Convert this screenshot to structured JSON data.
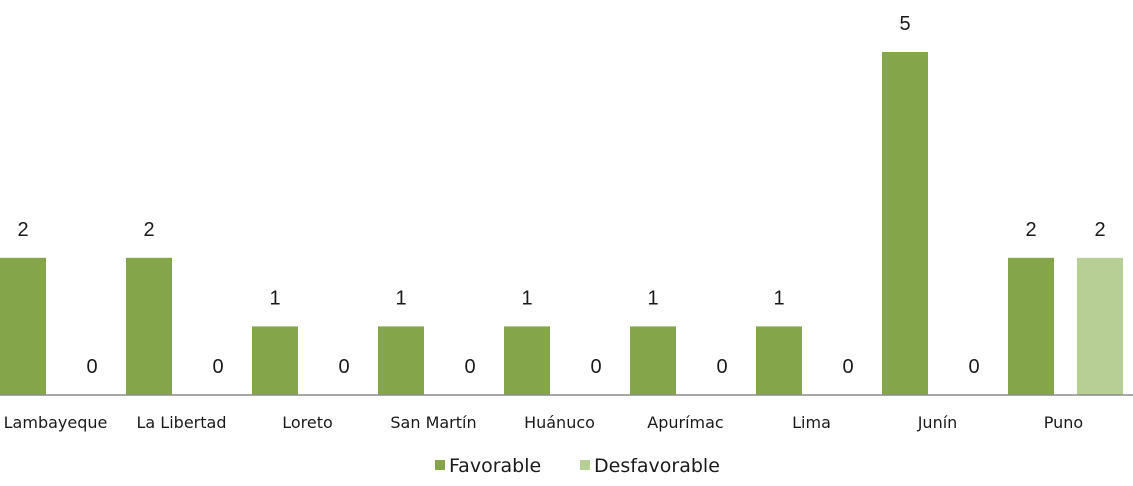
{
  "chart_data": {
    "type": "bar",
    "title": "",
    "xlabel": "",
    "ylabel": "",
    "ylim": [
      0,
      5
    ],
    "grid": false,
    "legend_position": "bottom-center",
    "categories": [
      "Lambayeque",
      "La Libertad",
      "Loreto",
      "San Martín",
      "Huánuco",
      "Apurímac",
      "Lima",
      "Junín",
      "Puno"
    ],
    "series": [
      {
        "name": "Favorable",
        "color": "#85a54a",
        "values": [
          2,
          2,
          1,
          1,
          1,
          1,
          1,
          5,
          2
        ]
      },
      {
        "name": "Desfavorable",
        "color": "#b7cf94",
        "values": [
          0,
          0,
          0,
          0,
          0,
          0,
          0,
          0,
          2
        ]
      }
    ],
    "data_labels": true
  }
}
